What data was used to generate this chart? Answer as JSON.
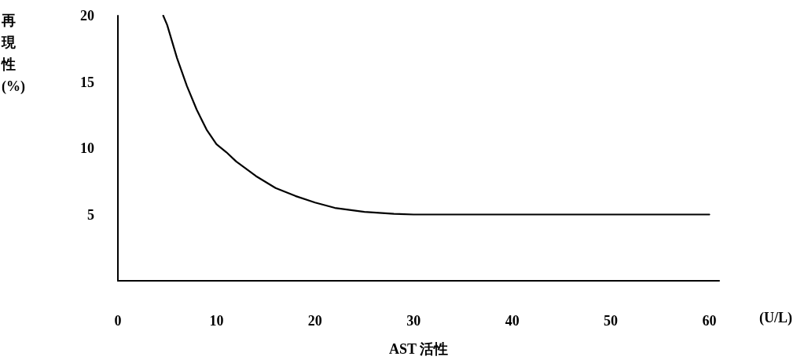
{
  "chart_data": {
    "type": "line",
    "xlabel": "AST 活性",
    "ylabel": "再現性(%)",
    "annotations": [
      "(U/L)"
    ],
    "series": [
      {
        "color": "#000000",
        "x": [
          4.6,
          5,
          6,
          7,
          8,
          9,
          10,
          11,
          12,
          14,
          16,
          18,
          20,
          22,
          25,
          28,
          30,
          40,
          50,
          60
        ],
        "values": [
          20,
          19.3,
          16.8,
          14.7,
          12.9,
          11.4,
          10.3,
          9.7,
          9.0,
          7.9,
          7.0,
          6.4,
          5.9,
          5.5,
          5.2,
          5.05,
          5,
          5,
          5,
          5
        ]
      }
    ],
    "xlim": [
      0,
      61
    ],
    "xticks": [
      0,
      10,
      20,
      30,
      40,
      50,
      60
    ],
    "ylim": [
      0,
      20
    ],
    "yticks": [
      5,
      10,
      15,
      20
    ],
    "grid": false,
    "marker": "none",
    "line_style": "solid"
  }
}
